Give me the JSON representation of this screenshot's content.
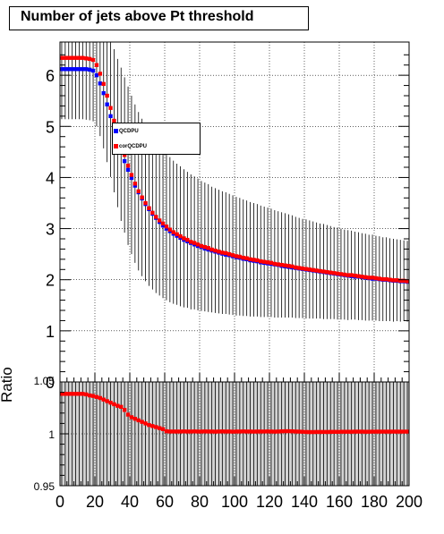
{
  "title": "Number of jets above Pt threshold",
  "chart_data": [
    {
      "type": "scatter",
      "panel": "main",
      "title": "Number of jets above Pt threshold",
      "xlabel": "",
      "ylabel": "",
      "xlim": [
        0,
        200
      ],
      "ylim": [
        0,
        6.65
      ],
      "yticks": [
        0,
        1,
        2,
        3,
        4,
        5,
        6
      ],
      "grid": true,
      "legend_placement": "upper-middle",
      "series": [
        {
          "name": "QCDPU",
          "color": "#0000ff",
          "x": [
            1,
            3,
            5,
            7,
            9,
            11,
            13,
            15,
            17,
            19,
            21,
            23,
            25,
            27,
            29,
            31,
            33,
            35,
            37,
            39,
            41,
            43,
            45,
            47,
            49,
            51,
            53,
            55,
            57,
            59,
            61,
            63,
            65,
            67,
            69,
            71,
            73,
            75,
            77,
            79,
            81,
            83,
            85,
            87,
            89,
            91,
            93,
            95,
            97,
            99,
            101,
            103,
            105,
            107,
            109,
            111,
            113,
            115,
            117,
            119,
            121,
            123,
            125,
            127,
            129,
            131,
            133,
            135,
            137,
            139,
            141,
            143,
            145,
            147,
            149,
            151,
            153,
            155,
            157,
            159,
            161,
            163,
            165,
            167,
            169,
            171,
            173,
            175,
            177,
            179,
            181,
            183,
            185,
            187,
            189,
            191,
            193,
            195,
            197,
            199
          ],
          "y": [
            6.12,
            6.12,
            6.12,
            6.12,
            6.12,
            6.12,
            6.12,
            6.12,
            6.11,
            6.09,
            6.0,
            5.84,
            5.65,
            5.43,
            5.2,
            4.96,
            4.73,
            4.52,
            4.32,
            4.15,
            3.99,
            3.84,
            3.71,
            3.59,
            3.48,
            3.38,
            3.29,
            3.21,
            3.13,
            3.06,
            3.0,
            2.95,
            2.9,
            2.86,
            2.82,
            2.78,
            2.75,
            2.72,
            2.69,
            2.66,
            2.64,
            2.61,
            2.59,
            2.57,
            2.55,
            2.53,
            2.51,
            2.49,
            2.48,
            2.46,
            2.44,
            2.43,
            2.41,
            2.4,
            2.38,
            2.37,
            2.36,
            2.34,
            2.33,
            2.32,
            2.31,
            2.3,
            2.29,
            2.27,
            2.26,
            2.25,
            2.24,
            2.23,
            2.22,
            2.21,
            2.2,
            2.19,
            2.18,
            2.17,
            2.16,
            2.15,
            2.14,
            2.13,
            2.12,
            2.11,
            2.1,
            2.09,
            2.08,
            2.07,
            2.06,
            2.06,
            2.05,
            2.04,
            2.03,
            2.02,
            2.02,
            2.01,
            2.0,
            2.0,
            1.99,
            1.98,
            1.98,
            1.97,
            1.97,
            1.96
          ]
        },
        {
          "name": "corQCDPU",
          "color": "#ff0000",
          "x": [
            1,
            3,
            5,
            7,
            9,
            11,
            13,
            15,
            17,
            19,
            21,
            23,
            25,
            27,
            29,
            31,
            33,
            35,
            37,
            39,
            41,
            43,
            45,
            47,
            49,
            51,
            53,
            55,
            57,
            59,
            61,
            63,
            65,
            67,
            69,
            71,
            73,
            75,
            77,
            79,
            81,
            83,
            85,
            87,
            89,
            91,
            93,
            95,
            97,
            99,
            101,
            103,
            105,
            107,
            109,
            111,
            113,
            115,
            117,
            119,
            121,
            123,
            125,
            127,
            129,
            131,
            133,
            135,
            137,
            139,
            141,
            143,
            145,
            147,
            149,
            151,
            153,
            155,
            157,
            159,
            161,
            163,
            165,
            167,
            169,
            171,
            173,
            175,
            177,
            179,
            181,
            183,
            185,
            187,
            189,
            191,
            193,
            195,
            197,
            199
          ],
          "y": [
            6.34,
            6.34,
            6.34,
            6.34,
            6.34,
            6.34,
            6.34,
            6.33,
            6.32,
            6.3,
            6.2,
            6.03,
            5.83,
            5.6,
            5.36,
            5.11,
            4.87,
            4.65,
            4.44,
            4.23,
            4.05,
            3.88,
            3.73,
            3.61,
            3.5,
            3.4,
            3.31,
            3.23,
            3.16,
            3.1,
            3.04,
            2.98,
            2.93,
            2.89,
            2.85,
            2.81,
            2.78,
            2.74,
            2.72,
            2.69,
            2.66,
            2.64,
            2.62,
            2.59,
            2.57,
            2.55,
            2.53,
            2.52,
            2.5,
            2.48,
            2.46,
            2.45,
            2.43,
            2.42,
            2.4,
            2.39,
            2.38,
            2.36,
            2.35,
            2.34,
            2.33,
            2.31,
            2.3,
            2.29,
            2.28,
            2.27,
            2.26,
            2.24,
            2.23,
            2.22,
            2.21,
            2.2,
            2.19,
            2.18,
            2.17,
            2.16,
            2.15,
            2.14,
            2.13,
            2.12,
            2.11,
            2.1,
            2.09,
            2.09,
            2.08,
            2.07,
            2.06,
            2.05,
            2.04,
            2.04,
            2.03,
            2.02,
            2.01,
            2.01,
            2.0,
            1.99,
            1.99,
            1.98,
            1.98,
            1.97
          ],
          "errors": [
            1.2,
            1.2,
            1.2,
            1.2,
            1.2,
            1.2,
            1.2,
            1.2,
            1.2,
            1.2,
            1.2,
            1.22,
            1.26,
            1.3,
            1.35,
            1.4,
            1.45,
            1.5,
            1.52,
            1.55,
            1.55,
            1.55,
            1.55,
            1.54,
            1.53,
            1.52,
            1.5,
            1.49,
            1.47,
            1.46,
            1.44,
            1.42,
            1.4,
            1.38,
            1.37,
            1.35,
            1.33,
            1.32,
            1.3,
            1.29,
            1.27,
            1.26,
            1.25,
            1.23,
            1.22,
            1.21,
            1.2,
            1.19,
            1.18,
            1.17,
            1.16,
            1.15,
            1.14,
            1.13,
            1.12,
            1.11,
            1.1,
            1.09,
            1.08,
            1.07,
            1.06,
            1.05,
            1.04,
            1.03,
            1.02,
            1.01,
            1.0,
            0.99,
            0.98,
            0.97,
            0.97,
            0.96,
            0.95,
            0.94,
            0.93,
            0.93,
            0.92,
            0.91,
            0.9,
            0.9,
            0.89,
            0.88,
            0.88,
            0.87,
            0.86,
            0.86,
            0.85,
            0.85,
            0.84,
            0.84,
            0.83,
            0.83,
            0.82,
            0.82,
            0.81,
            0.81,
            0.8,
            0.8,
            0.79,
            0.79
          ]
        }
      ]
    },
    {
      "type": "scatter",
      "panel": "ratio",
      "xlabel": "",
      "ylabel": "Ratio",
      "xlim": [
        0,
        200
      ],
      "ylim": [
        0.95,
        1.05
      ],
      "xticks": [
        0,
        20,
        40,
        60,
        80,
        100,
        120,
        140,
        160,
        180,
        200
      ],
      "ytick_labels": [
        "0.95",
        "1",
        "1.05"
      ],
      "yticks": [
        0.95,
        1.0,
        1.05
      ],
      "series": [
        {
          "name": "",
          "color": "#ff0000",
          "x": [
            1,
            3,
            5,
            7,
            9,
            11,
            13,
            15,
            17,
            19,
            21,
            23,
            25,
            27,
            29,
            31,
            33,
            35,
            37,
            39,
            41,
            43,
            45,
            47,
            49,
            51,
            53,
            55,
            57,
            59,
            61,
            63,
            65,
            67,
            69,
            71,
            73,
            75,
            77,
            79,
            81,
            83,
            85,
            87,
            89,
            91,
            93,
            95,
            97,
            99,
            101,
            103,
            105,
            107,
            109,
            111,
            113,
            115,
            117,
            119,
            121,
            123,
            125,
            127,
            129,
            131,
            133,
            135,
            137,
            139,
            141,
            143,
            145,
            147,
            149,
            151,
            153,
            155,
            157,
            159,
            161,
            163,
            165,
            167,
            169,
            171,
            173,
            175,
            177,
            179,
            181,
            183,
            185,
            187,
            189,
            191,
            193,
            195,
            197,
            199
          ],
          "y": [
            1.0385,
            1.0385,
            1.0385,
            1.0385,
            1.0385,
            1.0385,
            1.0385,
            1.038,
            1.037,
            1.0365,
            1.0355,
            1.0345,
            1.033,
            1.0315,
            1.03,
            1.0285,
            1.027,
            1.026,
            1.023,
            1.0185,
            1.016,
            1.0145,
            1.013,
            1.0115,
            1.01,
            1.0085,
            1.0075,
            1.0065,
            1.0055,
            1.0045,
            1.0025,
            1.0022,
            1.0022,
            1.0022,
            1.0022,
            1.0023,
            1.0022,
            1.0022,
            1.0023,
            1.0022,
            1.0022,
            1.0023,
            1.0022,
            1.0022,
            1.0021,
            1.0022,
            1.0023,
            1.0022,
            1.0022,
            1.0021,
            1.0022,
            1.0022,
            1.0023,
            1.0022,
            1.0022,
            1.0021,
            1.0022,
            1.0022,
            1.0022,
            1.0023,
            1.0022,
            1.0021,
            1.0022,
            1.0024,
            1.0025,
            1.0025,
            1.0024,
            1.0022,
            1.0021,
            1.002,
            1.0018,
            1.0017,
            1.0017,
            1.0018,
            1.0018,
            1.0018,
            1.0018,
            1.0019,
            1.0019,
            1.0019,
            1.002,
            1.002,
            1.002,
            1.002,
            1.0021,
            1.0021,
            1.0021,
            1.002,
            1.002,
            1.0021,
            1.0021,
            1.0021,
            1.0021,
            1.0021,
            1.0021,
            1.0021,
            1.0021,
            1.0021,
            1.0021,
            1.0021
          ],
          "band_color": "#d3d3d3",
          "band_note": "error band covers full panel"
        }
      ]
    }
  ]
}
